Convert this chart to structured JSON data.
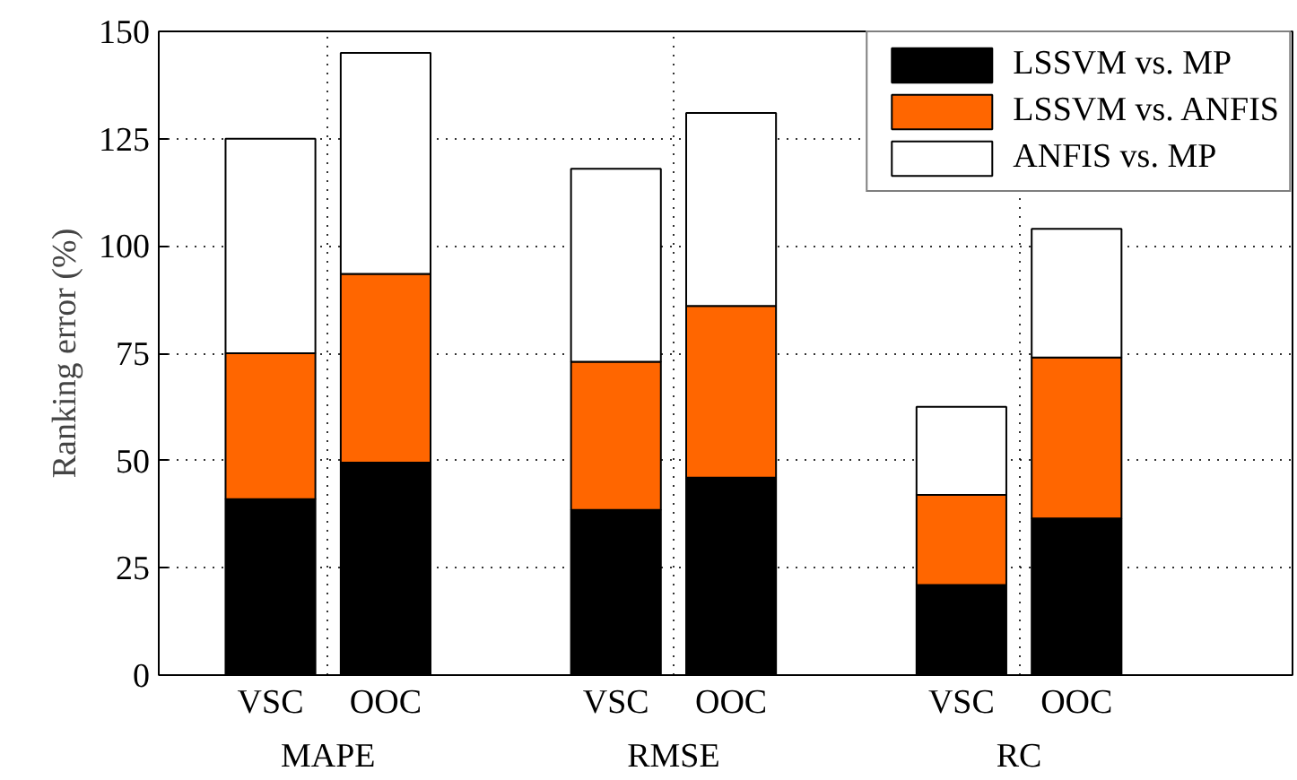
{
  "chart_data": {
    "type": "bar",
    "stacked": true,
    "ylabel": "Ranking error (%)",
    "categories": [
      "VSC",
      "OOC",
      "VSC",
      "OOC",
      "VSC",
      "OOC"
    ],
    "series": [
      {
        "name": "LSSVM vs. MP",
        "color": "#000000",
        "values": [
          41,
          49.5,
          38.5,
          46,
          21,
          36.5
        ]
      },
      {
        "name": "LSSVM vs. ANFIS",
        "color": "#ff6600",
        "values": [
          34,
          44,
          34.5,
          40,
          21,
          37.5
        ]
      },
      {
        "name": "ANFIS vs. MP",
        "color": "#ffffff",
        "values": [
          50,
          51.5,
          45,
          45,
          20.5,
          30
        ]
      }
    ],
    "annotations": [
      "MAPE",
      "RMSE",
      "RC"
    ],
    "ylim": [
      0,
      150
    ],
    "yticks": [
      0,
      25,
      50,
      75,
      100,
      125,
      150
    ],
    "grid": true,
    "legend": "top right"
  }
}
